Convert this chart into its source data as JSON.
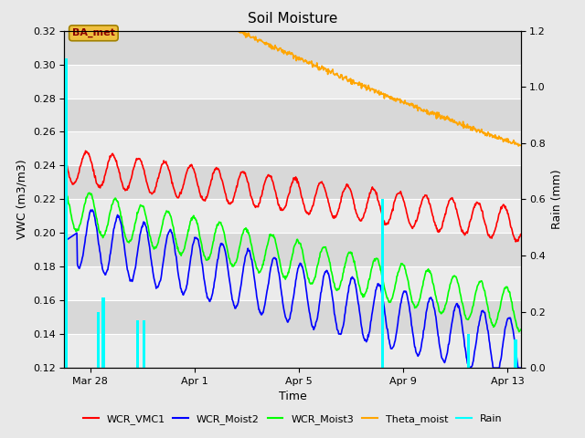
{
  "title": "Soil Moisture",
  "xlabel": "Time",
  "ylabel_left": "VWC (m3/m3)",
  "ylabel_right": "Rain (mm)",
  "ylim_left": [
    0.12,
    0.32
  ],
  "ylim_right": [
    0.0,
    1.2
  ],
  "fig_bg": "#e8e8e8",
  "plot_bg_light": "#ebebeb",
  "plot_bg_dark": "#d8d8d8",
  "annotation_text": "BA_met",
  "annotation_color": "#8B0000",
  "annotation_bg": "#f0c040",
  "annotation_edge": "#a08000",
  "xlim": [
    0,
    17.5
  ],
  "tick_positions": [
    1,
    5,
    9,
    13,
    17
  ],
  "tick_labels": [
    "Mar 28",
    "Apr 1",
    "Apr 5",
    "Apr 9",
    "Apr 13"
  ],
  "yticks": [
    0.12,
    0.14,
    0.16,
    0.18,
    0.2,
    0.22,
    0.24,
    0.26,
    0.28,
    0.3,
    0.32
  ],
  "rain_days": [
    0.08,
    1.3,
    1.5,
    2.8,
    3.05,
    12.2,
    15.5,
    17.3
  ],
  "rain_mm": [
    1.1,
    0.2,
    0.25,
    0.17,
    0.17,
    0.6,
    0.12,
    0.1
  ],
  "legend_labels": [
    "WCR_VMC1",
    "WCR_Moist2",
    "WCR_Moist3",
    "Theta_moist",
    "Rain"
  ],
  "legend_colors": [
    "red",
    "blue",
    "lime",
    "orange",
    "cyan"
  ]
}
